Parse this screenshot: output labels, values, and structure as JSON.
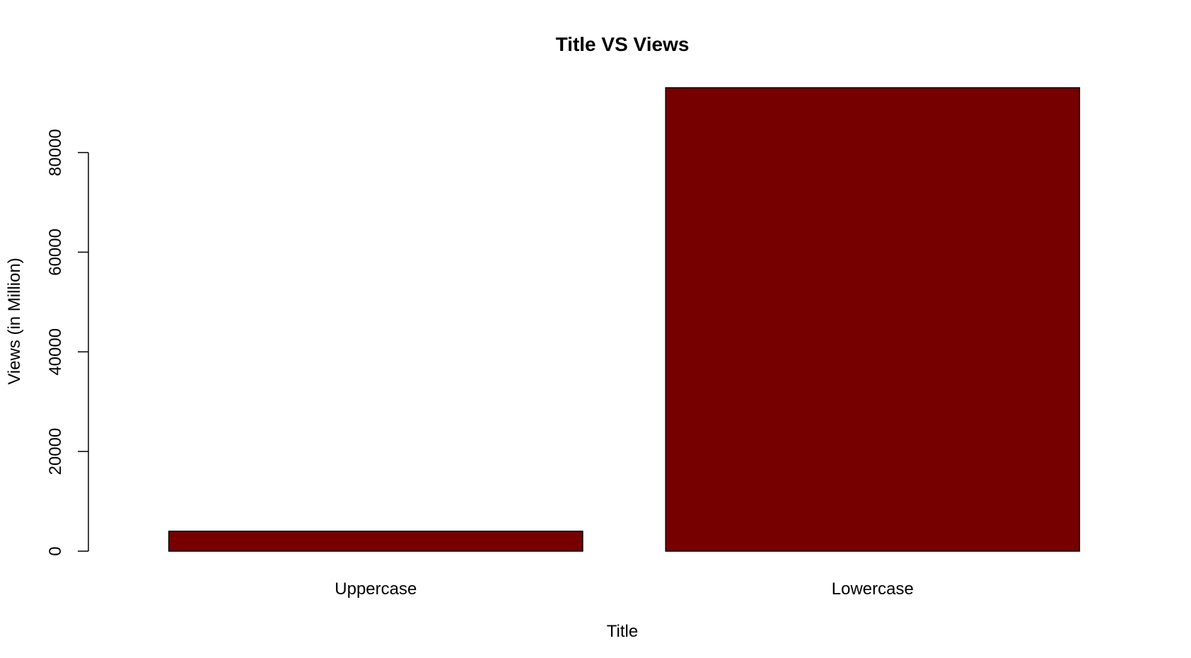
{
  "chart_data": {
    "type": "bar",
    "title": "Title VS Views",
    "xlabel": "Title",
    "ylabel": "Views (in Million)",
    "categories": [
      "Uppercase",
      "Lowercase"
    ],
    "values": [
      4000,
      93000
    ],
    "ylim": [
      0,
      93000
    ],
    "yticks": [
      0,
      20000,
      40000,
      60000,
      80000
    ],
    "ytick_labels": [
      "0",
      "20000",
      "40000",
      "60000",
      "80000"
    ],
    "grid": false,
    "legend": "none",
    "bar_color": "#760000",
    "bar_border_color": "#000000"
  }
}
